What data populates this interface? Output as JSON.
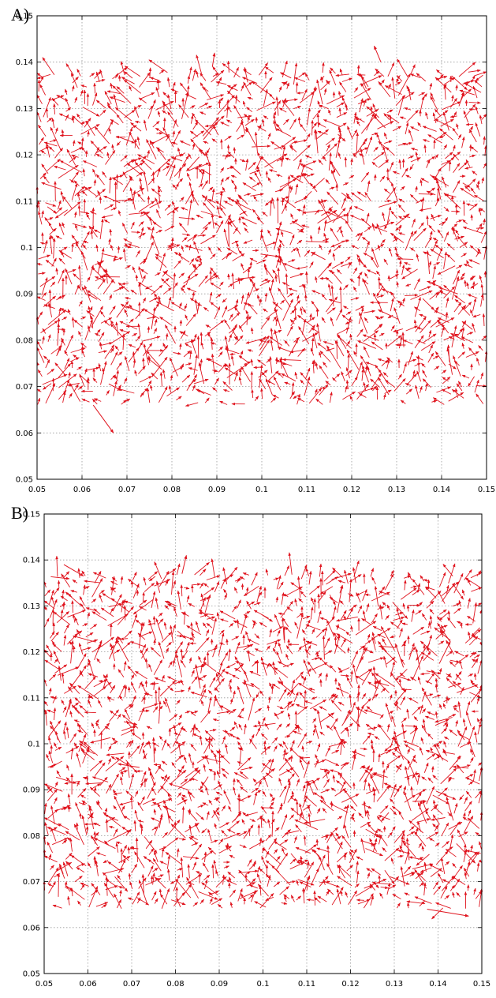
{
  "panels": [
    {
      "label": "A)"
    },
    {
      "label": "B)"
    }
  ],
  "chart_data": [
    {
      "type": "scatter",
      "subtype": "quiver",
      "panel": "A)",
      "xlim": [
        0.05,
        0.15
      ],
      "ylim": [
        0.05,
        0.15
      ],
      "xticks": [
        "0.05",
        "0.06",
        "0.07",
        "0.08",
        "0.09",
        "0.1",
        "0.11",
        "0.12",
        "0.13",
        "0.14",
        "0.15"
      ],
      "yticks": [
        "0.05",
        "0.06",
        "0.07",
        "0.08",
        "0.09",
        "0.1",
        "0.11",
        "0.12",
        "0.13",
        "0.14",
        "0.15"
      ],
      "grid": true,
      "grid_style": "dotted",
      "arrow_color": "#e0141e",
      "field_region": {
        "x": [
          0.05,
          0.15
        ],
        "y": [
          0.066,
          0.138
        ]
      },
      "field_density": "dense",
      "outliers": [
        {
          "x": 0.0625,
          "y": 0.066,
          "u": 0.0045,
          "v": -0.006
        },
        {
          "x": 0.089,
          "y": 0.139,
          "u": 0.0005,
          "v": 0.003
        },
        {
          "x": 0.1265,
          "y": 0.14,
          "u": -0.0015,
          "v": 0.0035
        }
      ]
    },
    {
      "type": "scatter",
      "subtype": "quiver",
      "panel": "B)",
      "xlim": [
        0.05,
        0.15
      ],
      "ylim": [
        0.05,
        0.15
      ],
      "xticks": [
        "0.05",
        "0.06",
        "0.07",
        "0.08",
        "0.09",
        "0.1",
        "0.11",
        "0.12",
        "0.13",
        "0.14",
        "0.15"
      ],
      "yticks": [
        "0.05",
        "0.06",
        "0.07",
        "0.08",
        "0.09",
        "0.1",
        "0.11",
        "0.12",
        "0.13",
        "0.14",
        "0.15"
      ],
      "grid": true,
      "grid_style": "dotted",
      "arrow_color": "#e0141e",
      "field_region": {
        "x": [
          0.05,
          0.15
        ],
        "y": [
          0.064,
          0.137
        ]
      },
      "field_density": "dense",
      "outliers": [
        {
          "x": 0.0545,
          "y": 0.139,
          "u": 0.0045,
          "v": -0.0025
        },
        {
          "x": 0.1375,
          "y": 0.064,
          "u": 0.0095,
          "v": -0.0015
        },
        {
          "x": 0.0815,
          "y": 0.137,
          "u": 0.001,
          "v": 0.004
        }
      ]
    }
  ]
}
